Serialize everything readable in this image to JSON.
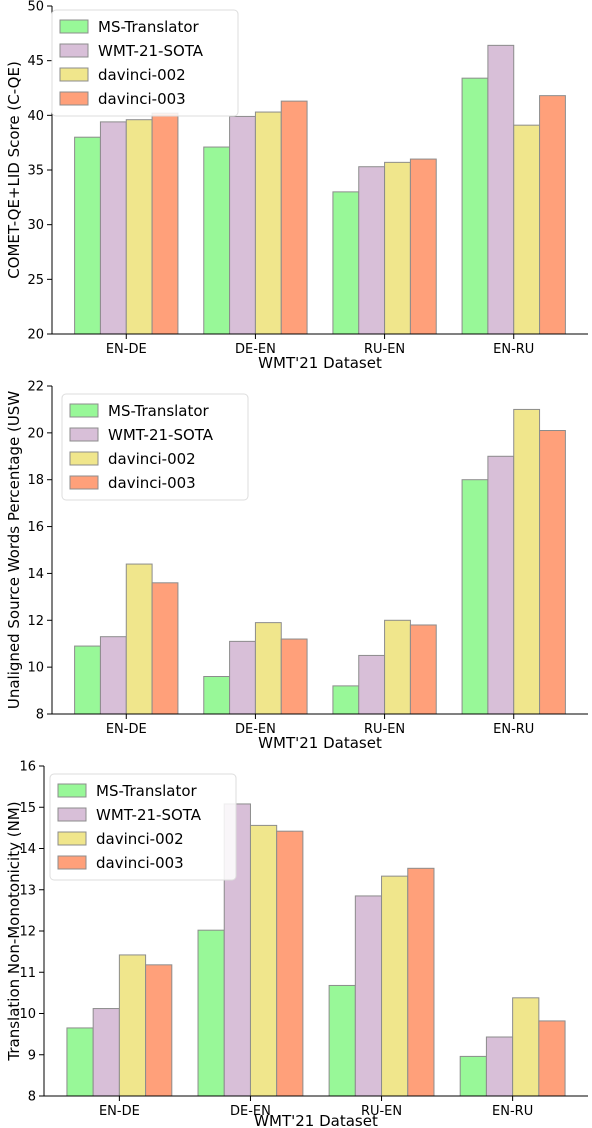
{
  "chart_data": [
    {
      "type": "bar",
      "categories": [
        "EN-DE",
        "DE-EN",
        "RU-EN",
        "EN-RU"
      ],
      "series": [
        {
          "name": "MS-Translator",
          "values": [
            38.0,
            37.1,
            33.0,
            43.4
          ]
        },
        {
          "name": "WMT-21-SOTA",
          "values": [
            39.4,
            39.9,
            35.3,
            46.4
          ]
        },
        {
          "name": "davinci-002",
          "values": [
            39.6,
            40.3,
            35.7,
            39.1
          ]
        },
        {
          "name": "davinci-003",
          "values": [
            40.2,
            41.3,
            36.0,
            41.8
          ]
        }
      ],
      "xlabel": "WMT'21 Dataset",
      "ylabel": "COMET-QE+LID Score (C-QE)",
      "ylim": [
        20,
        50
      ],
      "yticks": [
        20,
        25,
        30,
        35,
        40,
        45,
        50
      ],
      "legend": "top-left",
      "grid": false
    },
    {
      "type": "bar",
      "categories": [
        "EN-DE",
        "DE-EN",
        "RU-EN",
        "EN-RU"
      ],
      "series": [
        {
          "name": "MS-Translator",
          "values": [
            10.9,
            9.6,
            9.2,
            18.0
          ]
        },
        {
          "name": "WMT-21-SOTA",
          "values": [
            11.3,
            11.1,
            10.5,
            19.0
          ]
        },
        {
          "name": "davinci-002",
          "values": [
            14.4,
            11.9,
            12.0,
            21.0
          ]
        },
        {
          "name": "davinci-003",
          "values": [
            13.6,
            11.2,
            11.8,
            20.1
          ]
        }
      ],
      "xlabel": "WMT'21 Dataset",
      "ylabel": "Unaligned Source Words Percentage (USW",
      "ylim": [
        8,
        22
      ],
      "yticks": [
        8,
        10,
        12,
        14,
        16,
        18,
        20,
        22
      ],
      "legend": "top-left",
      "grid": false
    },
    {
      "type": "bar",
      "categories": [
        "EN-DE",
        "DE-EN",
        "RU-EN",
        "EN-RU"
      ],
      "series": [
        {
          "name": "MS-Translator",
          "values": [
            9.65,
            12.02,
            10.68,
            8.96
          ]
        },
        {
          "name": "WMT-21-SOTA",
          "values": [
            10.12,
            15.08,
            12.85,
            9.43
          ]
        },
        {
          "name": "davinci-002",
          "values": [
            11.42,
            14.56,
            13.33,
            10.38
          ]
        },
        {
          "name": "davinci-003",
          "values": [
            11.18,
            14.42,
            13.52,
            9.82
          ]
        }
      ],
      "xlabel": "WMT'21 Dataset",
      "ylabel": "Translation Non-Monotonicity (NM)",
      "ylim": [
        8,
        16
      ],
      "yticks": [
        8,
        9,
        10,
        11,
        12,
        13,
        14,
        15,
        16
      ],
      "legend": "top-left",
      "grid": false
    }
  ],
  "colors": {
    "series": [
      "#98f898",
      "#d8bfd8",
      "#f0e68c",
      "#ffa07a"
    ],
    "bar_edge": "#8c8c8c",
    "axis": "#000000"
  }
}
